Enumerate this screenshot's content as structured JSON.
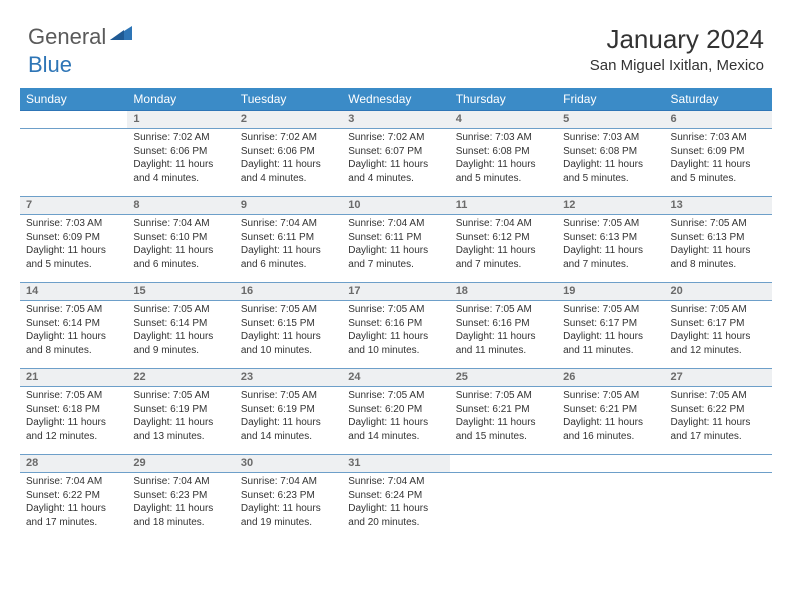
{
  "brand": {
    "part1": "General",
    "part2": "Blue"
  },
  "title": "January 2024",
  "location": "San Miguel Ixitlan, Mexico",
  "colors": {
    "header_bg": "#3b8bc7",
    "header_text": "#ffffff",
    "daynum_bg": "#eef0f2",
    "rule": "#6d9fc9",
    "brand_gray": "#5a5a5a",
    "brand_blue": "#2e75b6",
    "text": "#333333"
  },
  "weekdays": [
    "Sunday",
    "Monday",
    "Tuesday",
    "Wednesday",
    "Thursday",
    "Friday",
    "Saturday"
  ],
  "layout": {
    "start_offset": 1,
    "days_in_month": 31
  },
  "days": {
    "1": {
      "sunrise": "7:02 AM",
      "sunset": "6:06 PM",
      "daylight": "11 hours and 4 minutes."
    },
    "2": {
      "sunrise": "7:02 AM",
      "sunset": "6:06 PM",
      "daylight": "11 hours and 4 minutes."
    },
    "3": {
      "sunrise": "7:02 AM",
      "sunset": "6:07 PM",
      "daylight": "11 hours and 4 minutes."
    },
    "4": {
      "sunrise": "7:03 AM",
      "sunset": "6:08 PM",
      "daylight": "11 hours and 5 minutes."
    },
    "5": {
      "sunrise": "7:03 AM",
      "sunset": "6:08 PM",
      "daylight": "11 hours and 5 minutes."
    },
    "6": {
      "sunrise": "7:03 AM",
      "sunset": "6:09 PM",
      "daylight": "11 hours and 5 minutes."
    },
    "7": {
      "sunrise": "7:03 AM",
      "sunset": "6:09 PM",
      "daylight": "11 hours and 5 minutes."
    },
    "8": {
      "sunrise": "7:04 AM",
      "sunset": "6:10 PM",
      "daylight": "11 hours and 6 minutes."
    },
    "9": {
      "sunrise": "7:04 AM",
      "sunset": "6:11 PM",
      "daylight": "11 hours and 6 minutes."
    },
    "10": {
      "sunrise": "7:04 AM",
      "sunset": "6:11 PM",
      "daylight": "11 hours and 7 minutes."
    },
    "11": {
      "sunrise": "7:04 AM",
      "sunset": "6:12 PM",
      "daylight": "11 hours and 7 minutes."
    },
    "12": {
      "sunrise": "7:05 AM",
      "sunset": "6:13 PM",
      "daylight": "11 hours and 7 minutes."
    },
    "13": {
      "sunrise": "7:05 AM",
      "sunset": "6:13 PM",
      "daylight": "11 hours and 8 minutes."
    },
    "14": {
      "sunrise": "7:05 AM",
      "sunset": "6:14 PM",
      "daylight": "11 hours and 8 minutes."
    },
    "15": {
      "sunrise": "7:05 AM",
      "sunset": "6:14 PM",
      "daylight": "11 hours and 9 minutes."
    },
    "16": {
      "sunrise": "7:05 AM",
      "sunset": "6:15 PM",
      "daylight": "11 hours and 10 minutes."
    },
    "17": {
      "sunrise": "7:05 AM",
      "sunset": "6:16 PM",
      "daylight": "11 hours and 10 minutes."
    },
    "18": {
      "sunrise": "7:05 AM",
      "sunset": "6:16 PM",
      "daylight": "11 hours and 11 minutes."
    },
    "19": {
      "sunrise": "7:05 AM",
      "sunset": "6:17 PM",
      "daylight": "11 hours and 11 minutes."
    },
    "20": {
      "sunrise": "7:05 AM",
      "sunset": "6:17 PM",
      "daylight": "11 hours and 12 minutes."
    },
    "21": {
      "sunrise": "7:05 AM",
      "sunset": "6:18 PM",
      "daylight": "11 hours and 12 minutes."
    },
    "22": {
      "sunrise": "7:05 AM",
      "sunset": "6:19 PM",
      "daylight": "11 hours and 13 minutes."
    },
    "23": {
      "sunrise": "7:05 AM",
      "sunset": "6:19 PM",
      "daylight": "11 hours and 14 minutes."
    },
    "24": {
      "sunrise": "7:05 AM",
      "sunset": "6:20 PM",
      "daylight": "11 hours and 14 minutes."
    },
    "25": {
      "sunrise": "7:05 AM",
      "sunset": "6:21 PM",
      "daylight": "11 hours and 15 minutes."
    },
    "26": {
      "sunrise": "7:05 AM",
      "sunset": "6:21 PM",
      "daylight": "11 hours and 16 minutes."
    },
    "27": {
      "sunrise": "7:05 AM",
      "sunset": "6:22 PM",
      "daylight": "11 hours and 17 minutes."
    },
    "28": {
      "sunrise": "7:04 AM",
      "sunset": "6:22 PM",
      "daylight": "11 hours and 17 minutes."
    },
    "29": {
      "sunrise": "7:04 AM",
      "sunset": "6:23 PM",
      "daylight": "11 hours and 18 minutes."
    },
    "30": {
      "sunrise": "7:04 AM",
      "sunset": "6:23 PM",
      "daylight": "11 hours and 19 minutes."
    },
    "31": {
      "sunrise": "7:04 AM",
      "sunset": "6:24 PM",
      "daylight": "11 hours and 20 minutes."
    }
  },
  "labels": {
    "sunrise": "Sunrise: ",
    "sunset": "Sunset: ",
    "daylight": "Daylight: "
  }
}
